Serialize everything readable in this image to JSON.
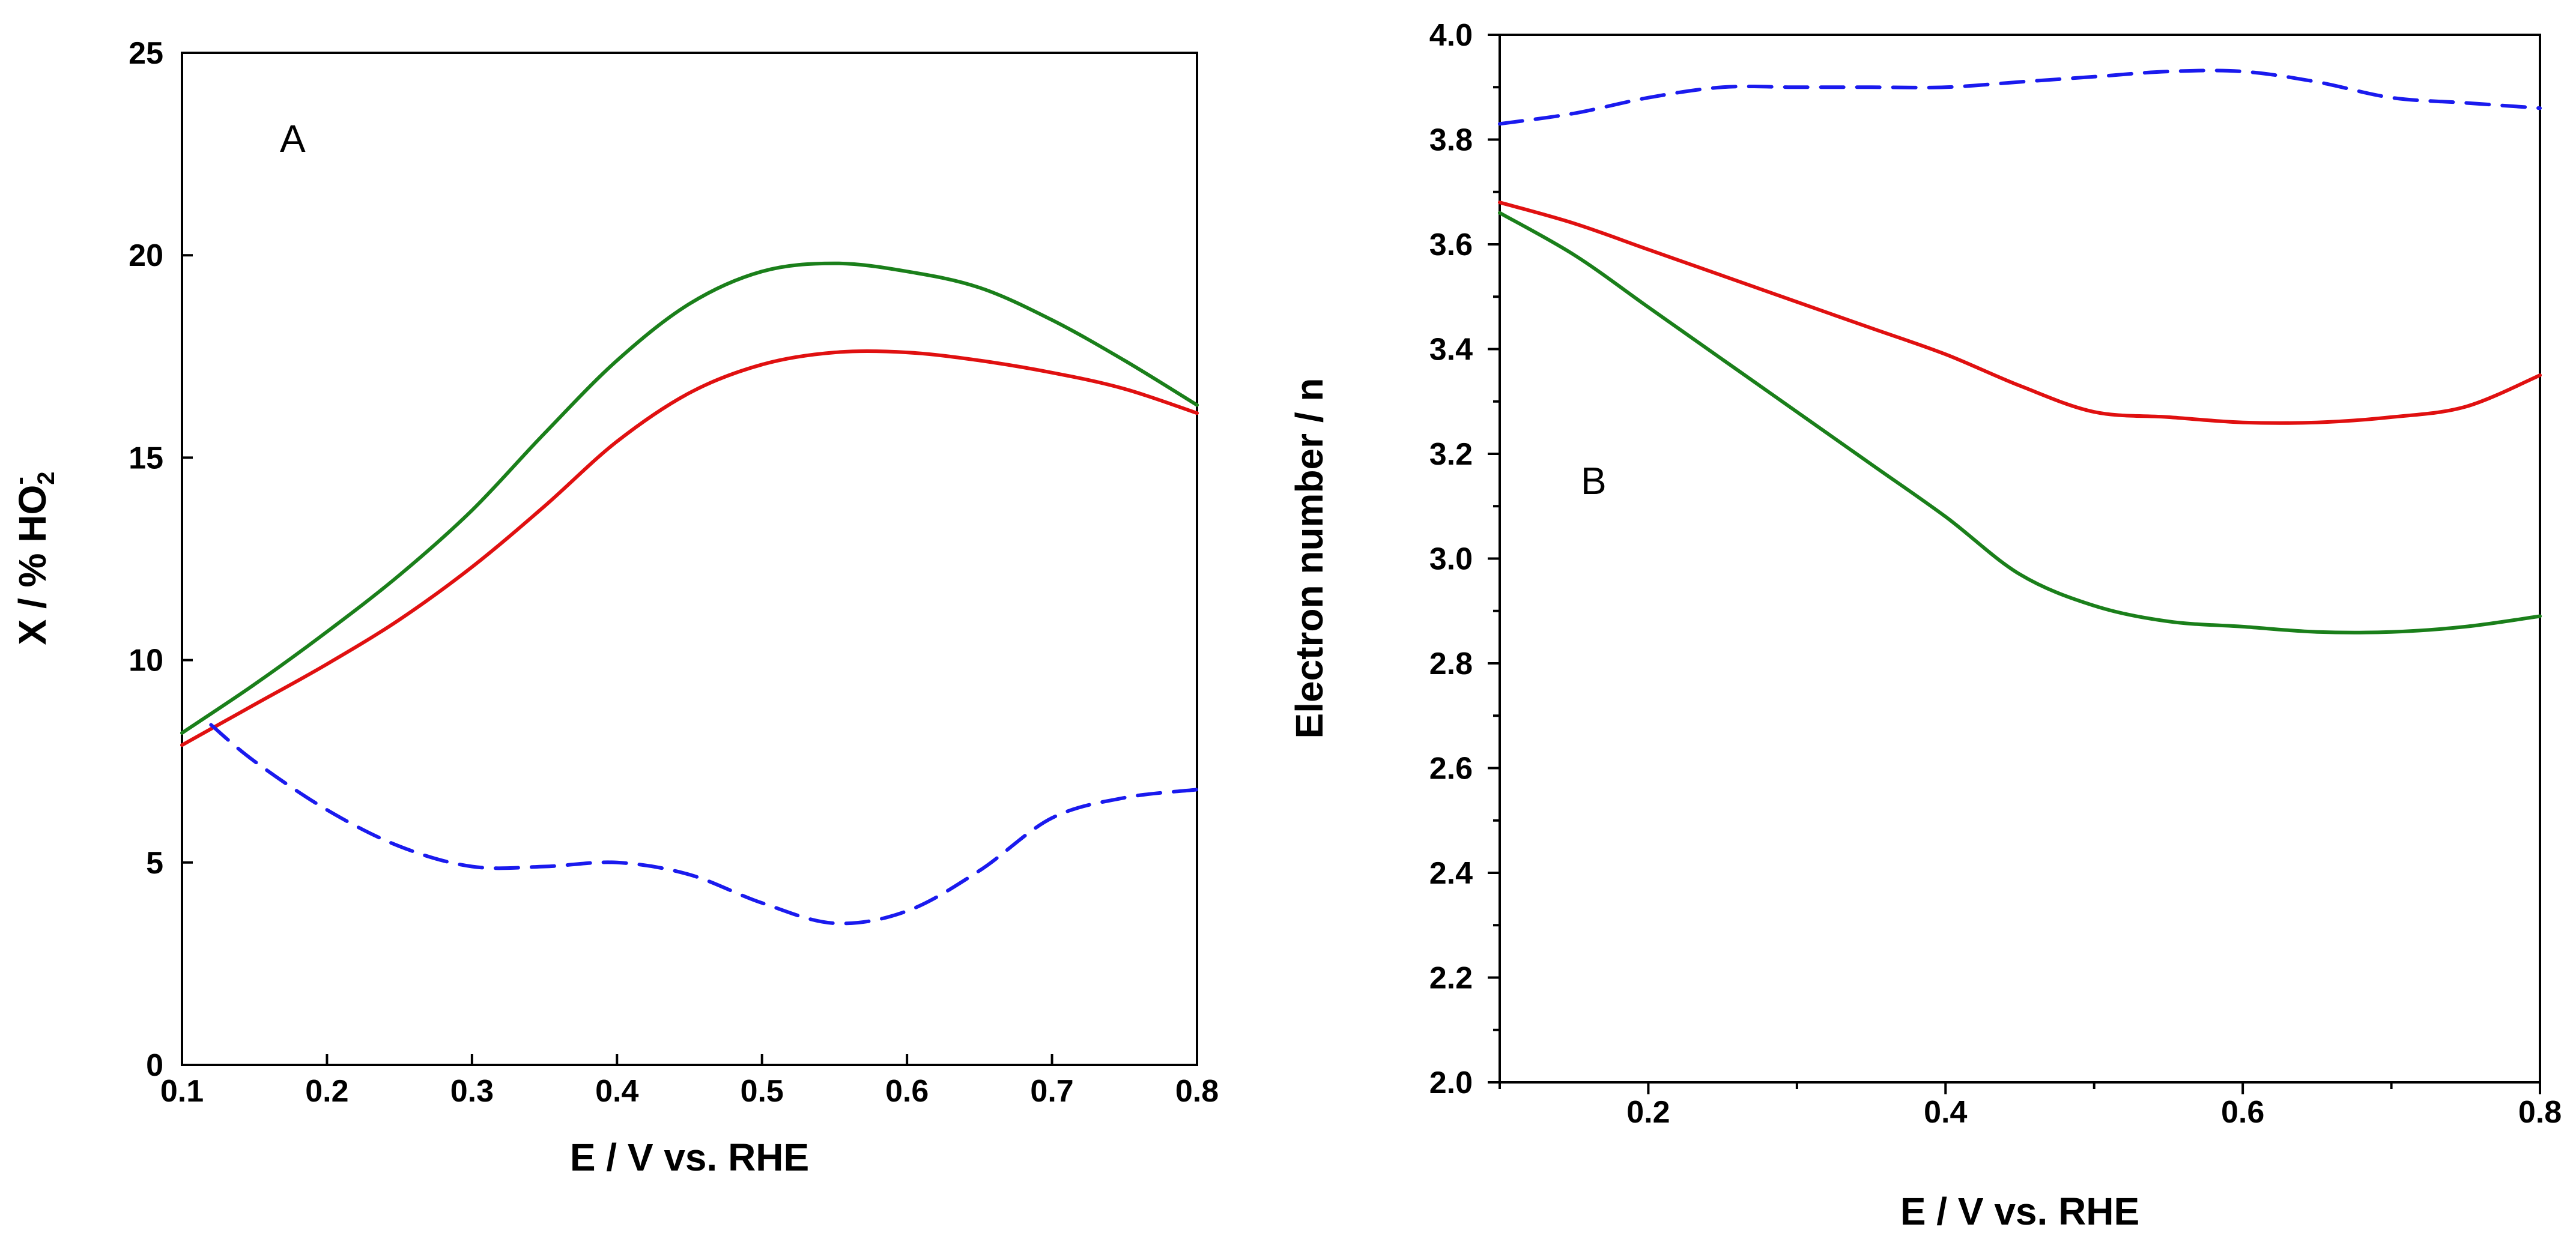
{
  "chart_data": [
    {
      "type": "line",
      "panel_label": "A",
      "xlabel": "E / V vs. RHE",
      "ylabel": "X / % HO",
      "ylabel_sub": "2",
      "ylabel_sup": "-",
      "xlim": [
        0.1,
        0.8
      ],
      "ylim": [
        0,
        25
      ],
      "xticks": [
        0.1,
        0.2,
        0.3,
        0.4,
        0.5,
        0.6,
        0.7,
        0.8
      ],
      "xtick_labels": [
        "0.1",
        "0.2",
        "0.3",
        "0.4",
        "0.5",
        "0.6",
        "0.7",
        "0.8"
      ],
      "yticks": [
        0,
        5,
        10,
        15,
        20,
        25
      ],
      "ytick_labels": [
        "0",
        "5",
        "10",
        "15",
        "20",
        "25"
      ],
      "grid": false,
      "series": [
        {
          "name": "green",
          "color": "#1a7f1a",
          "style": "solid",
          "x": [
            0.1,
            0.15,
            0.2,
            0.25,
            0.3,
            0.35,
            0.4,
            0.45,
            0.5,
            0.55,
            0.6,
            0.65,
            0.7,
            0.75,
            0.8
          ],
          "y": [
            8.2,
            9.4,
            10.7,
            12.1,
            13.7,
            15.6,
            17.4,
            18.8,
            19.6,
            19.8,
            19.6,
            19.2,
            18.4,
            17.4,
            16.3
          ]
        },
        {
          "name": "red",
          "color": "#e01010",
          "style": "solid",
          "x": [
            0.1,
            0.15,
            0.2,
            0.25,
            0.3,
            0.35,
            0.4,
            0.45,
            0.5,
            0.55,
            0.6,
            0.65,
            0.7,
            0.75,
            0.8
          ],
          "y": [
            7.9,
            8.9,
            9.9,
            11.0,
            12.3,
            13.8,
            15.4,
            16.6,
            17.3,
            17.6,
            17.6,
            17.4,
            17.1,
            16.7,
            16.1
          ]
        },
        {
          "name": "blue",
          "color": "#1a1aee",
          "style": "dashed",
          "x": [
            0.12,
            0.15,
            0.2,
            0.25,
            0.3,
            0.35,
            0.4,
            0.45,
            0.5,
            0.55,
            0.6,
            0.65,
            0.7,
            0.75,
            0.8
          ],
          "y": [
            8.4,
            7.5,
            6.3,
            5.4,
            4.9,
            4.9,
            5.0,
            4.7,
            4.0,
            3.5,
            3.8,
            4.8,
            6.1,
            6.6,
            6.8
          ]
        }
      ]
    },
    {
      "type": "line",
      "panel_label": "B",
      "xlabel": "E / V vs. RHE",
      "ylabel": "Electron number / n",
      "xlim": [
        0.1,
        0.8
      ],
      "ylim": [
        2.0,
        4.0
      ],
      "xticks": [
        0.2,
        0.4,
        0.6,
        0.8
      ],
      "xtick_labels": [
        "0.2",
        "0.4",
        "0.6",
        "0.8"
      ],
      "xminor": [
        0.1,
        0.3,
        0.5,
        0.7
      ],
      "yticks": [
        2.0,
        2.2,
        2.4,
        2.6,
        2.8,
        3.0,
        3.2,
        3.4,
        3.6,
        3.8,
        4.0
      ],
      "ytick_labels": [
        "2.0",
        "2.2",
        "2.4",
        "2.6",
        "2.8",
        "3.0",
        "3.2",
        "3.4",
        "3.6",
        "3.8",
        "4.0"
      ],
      "yminor": [
        2.1,
        2.3,
        2.5,
        2.7,
        2.9,
        3.1,
        3.3,
        3.5,
        3.7,
        3.9
      ],
      "grid": false,
      "series": [
        {
          "name": "blue",
          "color": "#1a1aee",
          "style": "dashed",
          "x": [
            0.1,
            0.15,
            0.2,
            0.25,
            0.3,
            0.35,
            0.4,
            0.45,
            0.5,
            0.55,
            0.6,
            0.65,
            0.7,
            0.75,
            0.8
          ],
          "y": [
            3.83,
            3.85,
            3.88,
            3.9,
            3.9,
            3.9,
            3.9,
            3.91,
            3.92,
            3.93,
            3.93,
            3.91,
            3.88,
            3.87,
            3.86
          ]
        },
        {
          "name": "red",
          "color": "#e01010",
          "style": "solid",
          "x": [
            0.1,
            0.15,
            0.2,
            0.25,
            0.3,
            0.35,
            0.4,
            0.45,
            0.5,
            0.55,
            0.6,
            0.65,
            0.7,
            0.75,
            0.8
          ],
          "y": [
            3.68,
            3.64,
            3.59,
            3.54,
            3.49,
            3.44,
            3.39,
            3.33,
            3.28,
            3.27,
            3.26,
            3.26,
            3.27,
            3.29,
            3.35
          ]
        },
        {
          "name": "green",
          "color": "#1a7f1a",
          "style": "solid",
          "x": [
            0.1,
            0.15,
            0.2,
            0.25,
            0.3,
            0.35,
            0.4,
            0.45,
            0.5,
            0.55,
            0.6,
            0.65,
            0.7,
            0.75,
            0.8
          ],
          "y": [
            3.66,
            3.58,
            3.48,
            3.38,
            3.28,
            3.18,
            3.08,
            2.97,
            2.91,
            2.88,
            2.87,
            2.86,
            2.86,
            2.87,
            2.89
          ]
        }
      ]
    }
  ]
}
